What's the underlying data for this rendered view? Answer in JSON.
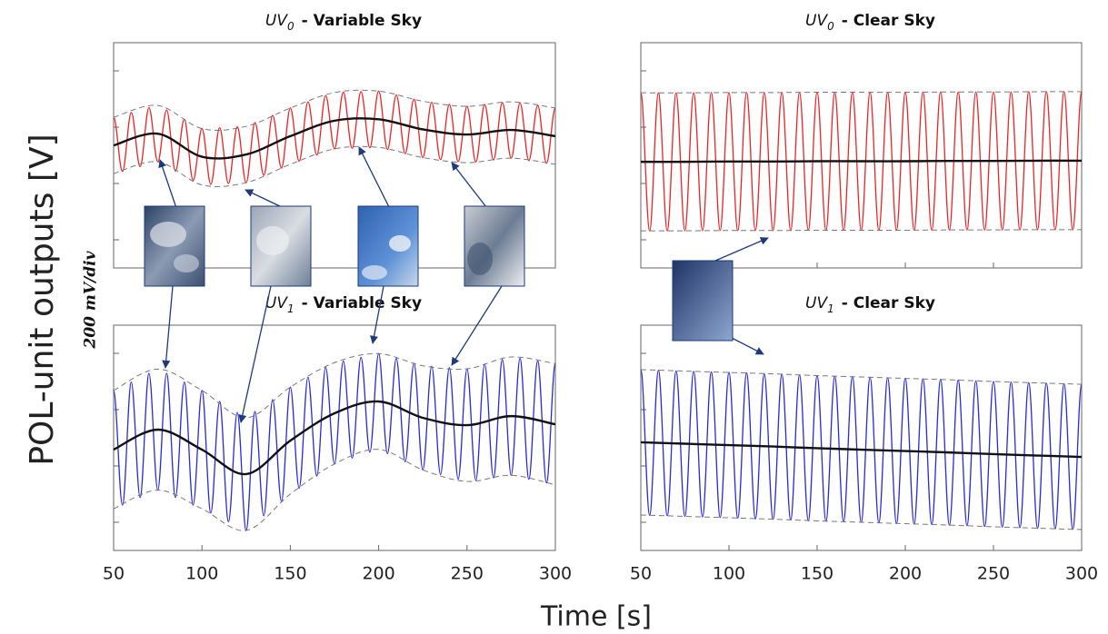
{
  "y_label": "POL-unit outputs [V]",
  "y_scale_note": "200 mV/div",
  "x_label": "Time [s]",
  "chart_data": [
    {
      "type": "line",
      "title": {
        "prefix": "UV",
        "subscript": "0",
        "text": "- Variable Sky"
      },
      "xlim": [
        50,
        300
      ],
      "xticks": [
        50,
        100,
        150,
        200,
        250,
        300
      ],
      "show_xtick_labels": false,
      "ylim": [
        0,
        800
      ],
      "yticks": [
        100,
        300,
        500,
        700
      ],
      "x": [
        50,
        55,
        60,
        65,
        70,
        75,
        80,
        85,
        90,
        95,
        100,
        105,
        110,
        115,
        120,
        125,
        130,
        135,
        140,
        145,
        150,
        155,
        160,
        165,
        170,
        175,
        180,
        185,
        190,
        195,
        200,
        205,
        210,
        215,
        220,
        225,
        230,
        235,
        240,
        245,
        250,
        255,
        260,
        265,
        270,
        275,
        280,
        285,
        290,
        295,
        300
      ],
      "series": [
        {
          "color": "#e8262a",
          "style": "wave",
          "values": [
            535,
            343,
            552,
            360,
            569,
            377,
            561,
            344,
            528,
            311,
            495,
            297,
            498,
            300,
            501,
            303,
            516,
            329,
            542,
            355,
            568,
            379,
            590,
            401,
            612,
            423,
            624,
            425,
            626,
            427,
            628,
            421,
            614,
            406,
            599,
            392,
            588,
            385,
            581,
            378,
            574,
            377,
            580,
            384,
            587,
            390,
            586,
            381,
            577,
            372,
            568
          ]
        },
        {
          "color": "#777777",
          "style": "dashed",
          "x": [
            50,
            75,
            100,
            125,
            150,
            175,
            200,
            225,
            250,
            275,
            300
          ],
          "values": [
            535,
            577,
            495,
            503,
            568,
            623,
            628,
            592,
            574,
            590,
            568
          ]
        },
        {
          "color": "#777777",
          "style": "dashed",
          "x": [
            50,
            75,
            100,
            125,
            150,
            175,
            200,
            225,
            250,
            275,
            300
          ],
          "values": [
            335,
            377,
            295,
            303,
            368,
            423,
            428,
            392,
            374,
            390,
            368
          ]
        },
        {
          "color": "#111111",
          "style": "mean",
          "x": [
            50,
            75,
            100,
            125,
            150,
            175,
            200,
            225,
            250,
            275,
            300
          ],
          "values": [
            435,
            477,
            395,
            403,
            468,
            523,
            528,
            492,
            474,
            490,
            468
          ]
        }
      ]
    },
    {
      "type": "line",
      "title": {
        "prefix": "UV",
        "subscript": "0",
        "text": "- Clear Sky"
      },
      "xlim": [
        50,
        300
      ],
      "xticks": [
        50,
        100,
        150,
        200,
        250,
        300
      ],
      "show_xtick_labels": false,
      "ylim": [
        0,
        800
      ],
      "yticks": [
        100,
        300,
        500,
        700
      ],
      "x": [
        50,
        55,
        60,
        65,
        70,
        75,
        80,
        85,
        90,
        95,
        100,
        105,
        110,
        115,
        120,
        125,
        130,
        135,
        140,
        145,
        150,
        155,
        160,
        165,
        170,
        175,
        180,
        185,
        190,
        195,
        200,
        205,
        210,
        215,
        220,
        225,
        230,
        235,
        240,
        245,
        250,
        255,
        260,
        265,
        270,
        275,
        280,
        285,
        290,
        295,
        300
      ],
      "series": [
        {
          "color": "#e8262a",
          "style": "wave",
          "values": [
            622,
            132,
            622,
            132,
            622,
            132,
            622,
            133,
            623,
            133,
            623,
            133,
            623,
            133,
            623,
            133,
            623,
            133,
            623,
            134,
            624,
            134,
            624,
            134,
            624,
            134,
            624,
            134,
            624,
            134,
            624,
            134,
            625,
            135,
            625,
            135,
            625,
            135,
            625,
            135,
            625,
            135,
            625,
            135,
            626,
            136,
            626,
            136,
            626,
            136,
            626
          ]
        },
        {
          "color": "#777777",
          "style": "dashed",
          "x": [
            50,
            75,
            100,
            125,
            150,
            175,
            200,
            225,
            250,
            275,
            300
          ],
          "values": [
            622,
            622,
            623,
            623,
            624,
            624,
            624,
            625,
            625,
            626,
            626
          ]
        },
        {
          "color": "#777777",
          "style": "dashed",
          "x": [
            50,
            75,
            100,
            125,
            150,
            175,
            200,
            225,
            250,
            275,
            300
          ],
          "values": [
            132,
            132,
            133,
            133,
            134,
            134,
            134,
            135,
            135,
            136,
            136
          ]
        },
        {
          "color": "#111111",
          "style": "mean",
          "x": [
            50,
            75,
            100,
            125,
            150,
            175,
            200,
            225,
            250,
            275,
            300
          ],
          "values": [
            377,
            377,
            378,
            378,
            379,
            379,
            379,
            380,
            380,
            381,
            381
          ]
        }
      ]
    },
    {
      "type": "line",
      "title": {
        "prefix": "UV",
        "subscript": "1",
        "text": "- Variable Sky"
      },
      "xlim": [
        50,
        300
      ],
      "xticks": [
        50,
        100,
        150,
        200,
        250,
        300
      ],
      "show_xtick_labels": true,
      "ylim": [
        0,
        800
      ],
      "yticks": [
        100,
        300,
        500,
        700
      ],
      "x": [
        50,
        55,
        60,
        65,
        70,
        75,
        80,
        85,
        90,
        95,
        100,
        105,
        110,
        115,
        120,
        125,
        130,
        135,
        140,
        145,
        150,
        155,
        160,
        165,
        170,
        175,
        180,
        185,
        190,
        195,
        200,
        205,
        210,
        215,
        220,
        225,
        230,
        235,
        240,
        245,
        250,
        255,
        260,
        265,
        270,
        275,
        280,
        285,
        290,
        295,
        300
      ],
      "series": [
        {
          "color": "#2a2adb",
          "style": "wave",
          "values": [
            568,
            161,
            598,
            188,
            629,
            214,
            629,
            188,
            598,
            161,
            568,
            133,
            529,
            102,
            490,
            71,
            493,
            123,
            536,
            174,
            580,
            221,
            615,
            264,
            650,
            307,
            673,
            328,
            686,
            349,
            699,
            344,
            682,
            315,
            665,
            286,
            654,
            270,
            649,
            253,
            645,
            249,
            662,
            258,
            678,
            267,
            682,
            253,
            673,
            240,
            663
          ]
        },
        {
          "color": "#777777",
          "style": "dashed",
          "x": [
            50,
            75,
            100,
            125,
            150,
            175,
            200,
            225,
            250,
            275,
            300
          ],
          "values": [
            568,
            644,
            568,
            471,
            580,
            667,
            699,
            656,
            645,
            687,
            663
          ]
        },
        {
          "color": "#777777",
          "style": "dashed",
          "x": [
            50,
            75,
            100,
            125,
            150,
            175,
            200,
            225,
            250,
            275,
            300
          ],
          "values": [
            148,
            214,
            148,
            71,
            200,
            307,
            359,
            286,
            245,
            267,
            233
          ]
        },
        {
          "color": "#111111",
          "style": "mean",
          "x": [
            50,
            75,
            100,
            125,
            150,
            175,
            200,
            225,
            250,
            275,
            300
          ],
          "values": [
            358,
            429,
            358,
            271,
            390,
            487,
            529,
            471,
            445,
            477,
            448
          ]
        }
      ]
    },
    {
      "type": "line",
      "title": {
        "prefix": "UV",
        "subscript": "1",
        "text": "- Clear Sky"
      },
      "xlim": [
        50,
        300
      ],
      "xticks": [
        50,
        100,
        150,
        200,
        250,
        300
      ],
      "show_xtick_labels": true,
      "ylim": [
        0,
        800
      ],
      "yticks": [
        100,
        300,
        500,
        700
      ],
      "x": [
        50,
        55,
        60,
        65,
        70,
        75,
        80,
        85,
        90,
        95,
        100,
        105,
        110,
        115,
        120,
        125,
        130,
        135,
        140,
        145,
        150,
        155,
        160,
        165,
        170,
        175,
        180,
        185,
        190,
        195,
        200,
        205,
        210,
        215,
        220,
        225,
        230,
        235,
        240,
        245,
        250,
        255,
        260,
        265,
        270,
        275,
        280,
        285,
        290,
        295,
        300
      ],
      "series": [
        {
          "color": "#2a2adb",
          "style": "wave",
          "values": [
            642,
            125,
            640,
            123,
            638,
            121,
            636,
            119,
            634,
            117,
            632,
            115,
            630,
            112,
            627,
            110,
            625,
            108,
            623,
            106,
            621,
            104,
            619,
            102,
            617,
            100,
            615,
            98,
            613,
            96,
            611,
            94,
            609,
            92,
            607,
            90,
            605,
            88,
            602,
            85,
            600,
            83,
            598,
            81,
            596,
            79,
            594,
            77,
            592,
            75,
            590
          ]
        },
        {
          "color": "#777777",
          "style": "dashed",
          "x": [
            50,
            75,
            100,
            125,
            150,
            175,
            200,
            225,
            250,
            275,
            300
          ],
          "values": [
            642,
            637,
            632,
            627,
            621,
            616,
            611,
            606,
            600,
            595,
            590
          ]
        },
        {
          "color": "#777777",
          "style": "dashed",
          "x": [
            50,
            75,
            100,
            125,
            150,
            175,
            200,
            225,
            250,
            275,
            300
          ],
          "values": [
            126,
            121,
            116,
            111,
            105,
            100,
            95,
            90,
            84,
            79,
            74
          ]
        },
        {
          "color": "#111111",
          "style": "mean",
          "x": [
            50,
            75,
            100,
            125,
            150,
            175,
            200,
            225,
            250,
            275,
            300
          ],
          "values": [
            384,
            379,
            374,
            369,
            363,
            358,
            353,
            348,
            342,
            337,
            332
          ]
        }
      ]
    }
  ]
}
